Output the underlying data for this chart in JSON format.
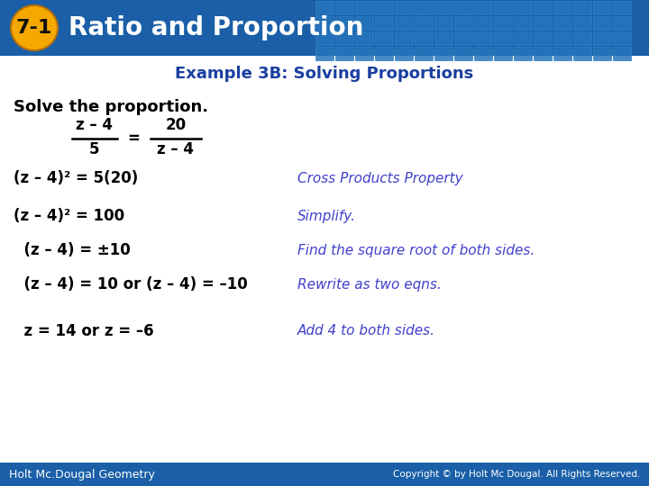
{
  "title_badge": "7-1",
  "title_text": "Ratio and Proportion",
  "subtitle": "Example 3B: Solving Proportions",
  "solve_label": "Solve the proportion.",
  "header_bg_color": "#1a5fa8",
  "tile_color": "#2575bc",
  "tile_edge": "#3080c8",
  "badge_bg": "#f5a800",
  "badge_text_color": "#111111",
  "title_text_color": "#ffffff",
  "subtitle_color": "#1a3fa0",
  "body_bg": "#ffffff",
  "black": "#000000",
  "blue_note": "#4040cc",
  "footer_bg": "#1a5fa8",
  "footer_text": "Holt Mc.Dougal Geometry",
  "footer_right": "Copyright © by Holt Mc Dougal. All Rights Reserved.",
  "frac_num_left": "z – 4",
  "frac_den_left": "5",
  "frac_num_right": "20",
  "frac_den_right": "z – 4",
  "lines": [
    {
      "left": "(z – 4)² = 5(20)",
      "right": "Cross Products Property"
    },
    {
      "left": "(z – 4)² = 100",
      "right": "Simplify."
    },
    {
      "left": "  (z – 4) = ±10",
      "right": "Find the square root of both sides."
    },
    {
      "left": "  (z – 4) = 10 or (z – 4) = –10",
      "right": "Rewrite as two eqns."
    },
    {
      "left": "  z = 14 or z = –6",
      "right": "Add 4 to both sides."
    }
  ]
}
